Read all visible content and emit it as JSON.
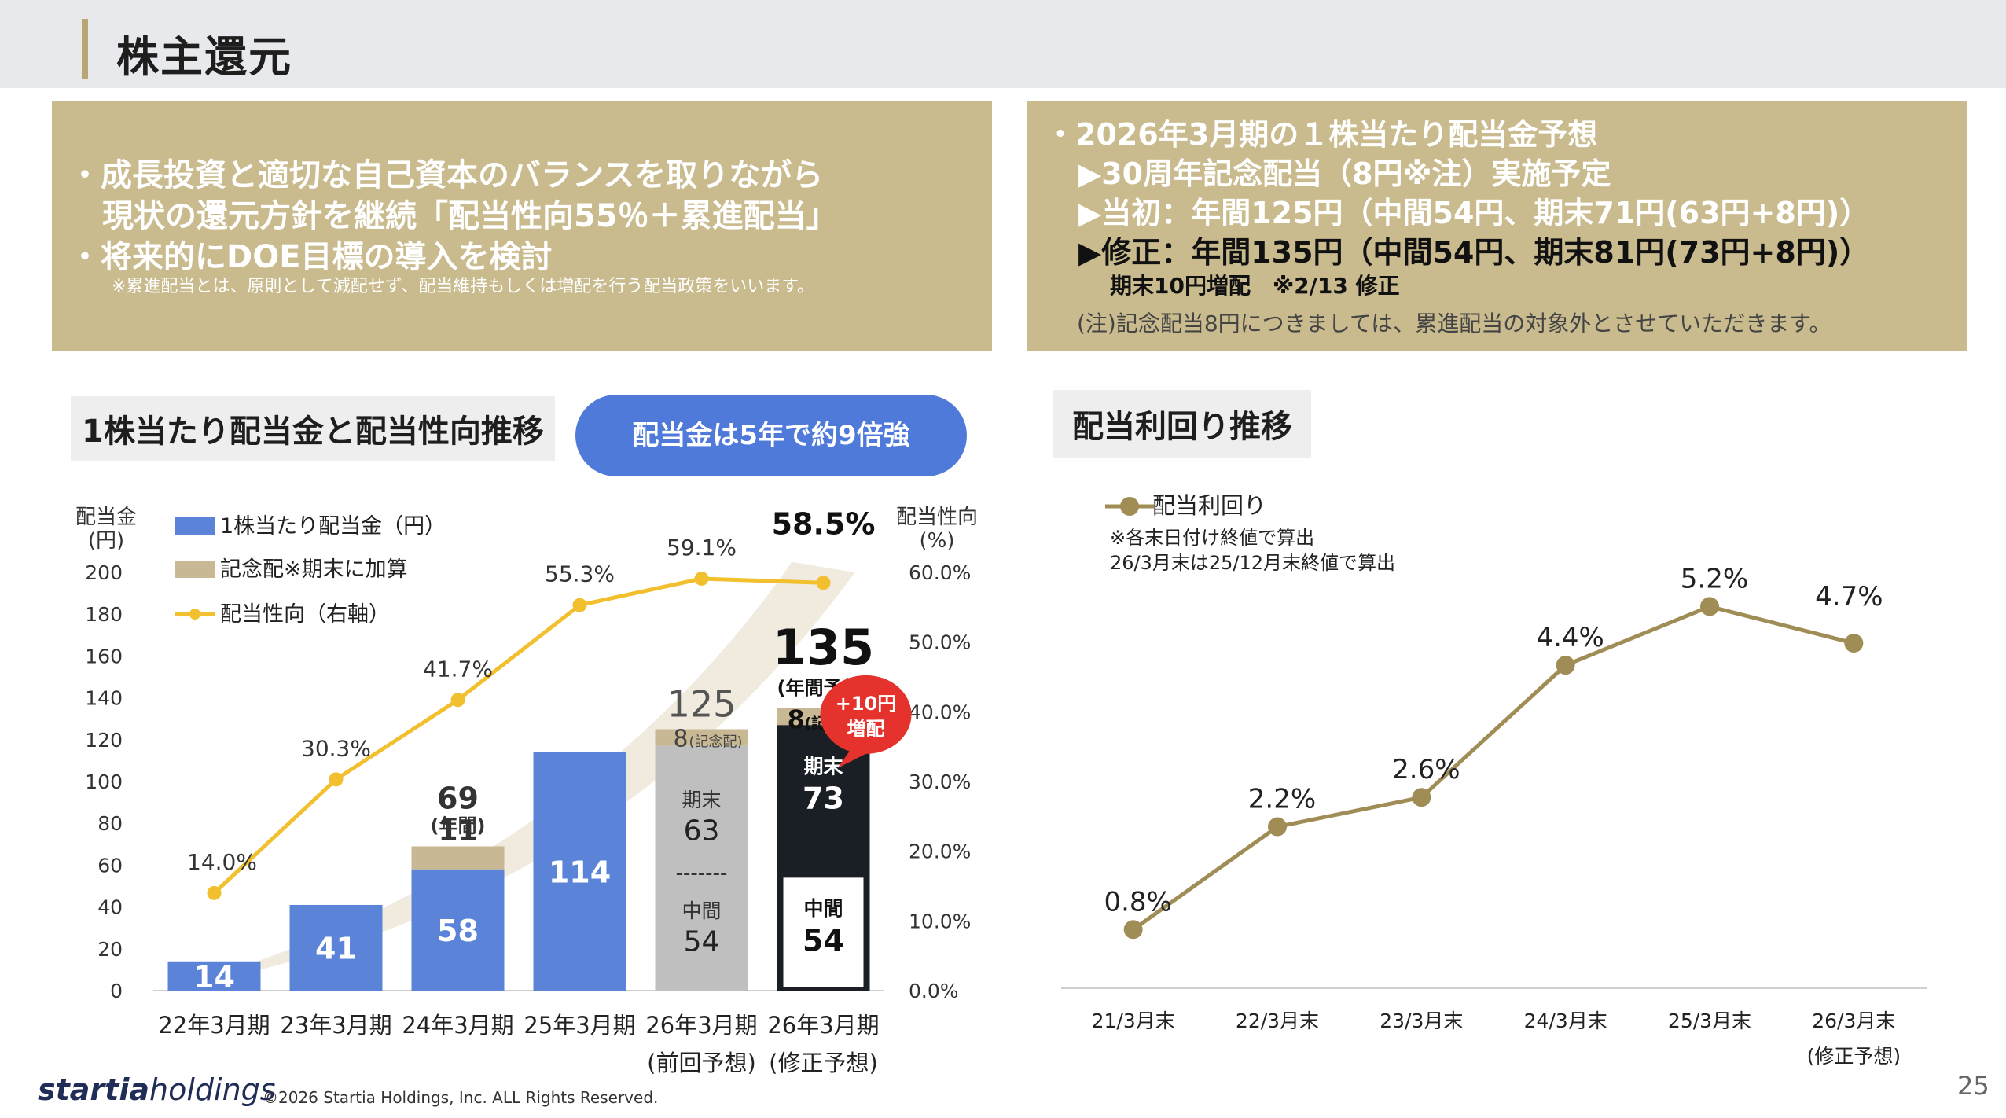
{
  "header": {
    "title": "株主還元"
  },
  "left_box": {
    "bullet1_line1": "・成長投資と適切な自己資本のバランスを取りながら",
    "bullet1_line2": "現状の還元方針を継続「配当性向55％＋累進配当」",
    "bullet2": "・将来的にDOE目標の導入を検討",
    "note": "※累進配当とは、原則として減配せず、配当維持もしくは増配を行う配当政策をいいます。"
  },
  "right_box": {
    "line1": "・2026年3月期の１株当たり配当金予想",
    "line2": "▶30周年記念配当（8円※注）実施予定",
    "line3": "▶当初：年間125円（中間54円、期末71円(63円+8円)）",
    "line4": "▶修正：年間135円（中間54円、期末81円(73円+8円)）",
    "line5": "期末10円増配　※2/13 修正",
    "note": "(注)記念配当8円につきましては、累進配当の対象外とさせていただきます。"
  },
  "left_section": {
    "title": "1株当たり配当金と配当性向推移",
    "callout": "配当金は5年で約9倍強"
  },
  "right_section": {
    "title": "配当利回り推移"
  },
  "chart_data": [
    {
      "type": "bar",
      "title": "1株当たり配当金と配当性向推移",
      "categories": [
        "22年3月期",
        "23年3月期",
        "24年3月期",
        "25年3月期",
        "26年3月期",
        "26年3月期"
      ],
      "category_subs": [
        "",
        "",
        "",
        "",
        "(前回予想)",
        "(修正予想)"
      ],
      "y_axis_title_1": "配当金",
      "y_axis_title_2": "(円)",
      "y2_axis_title_1": "配当性向",
      "y2_axis_title_2": "(%)",
      "ylim": [
        0,
        200
      ],
      "yticks": [
        "0",
        "20",
        "40",
        "60",
        "80",
        "100",
        "120",
        "140",
        "160",
        "180",
        "200"
      ],
      "y2lim": [
        0,
        60
      ],
      "y2ticks": [
        "0.0%",
        "10.0%",
        "20.0%",
        "30.0%",
        "40.0%",
        "50.0%",
        "60.0%"
      ],
      "legend": [
        "1株当たり配当金（円）",
        "記念配※期末に加算",
        "配当性向（右軸）"
      ],
      "series": [
        {
          "name": "1株当たり配当金（円）",
          "values": [
            14,
            41,
            58,
            114,
            117,
            127
          ],
          "color": "#5b84d9"
        },
        {
          "name": "記念配※期末に加算",
          "values": [
            0,
            0,
            11,
            0,
            8,
            8
          ],
          "color": "#c8b894"
        },
        {
          "name": "配当性向（右軸）",
          "values": [
            14.0,
            30.3,
            41.7,
            55.3,
            59.1,
            58.5
          ],
          "axis": "right",
          "color": "#f2c02f"
        }
      ],
      "bar_labels": [
        "14",
        "41",
        "58",
        "114"
      ],
      "payout_labels": [
        "14.0%",
        "30.3%",
        "41.7%",
        "55.3%",
        "59.1%",
        "58.5%"
      ],
      "fy24": {
        "total": "69",
        "sub": "(年間)",
        "commemorative": "11"
      },
      "prev_forecast": {
        "total": "125",
        "comm": "8",
        "comm_note": "(記念配)",
        "end_label": "期末",
        "end_value": "63",
        "divider": "-------",
        "interim_label": "中間",
        "interim_value": "54"
      },
      "rev_forecast": {
        "total": "135",
        "total_note": "(年間予想)",
        "comm": "8",
        "comm_note": "(記念配)",
        "end_label": "期末",
        "end_value": "73",
        "interim_label": "中間",
        "interim_value": "54",
        "badge_line1": "+10円",
        "badge_line2": "増配"
      },
      "colors": {
        "bar": "#5b84d9",
        "commemorative": "#c8b894",
        "forecast_prev": "#bfbfbf",
        "forecast_rev": "#1a1f26",
        "line": "#f2c02f",
        "badge": "#e5322d"
      }
    },
    {
      "type": "line",
      "title": "配当利回り推移",
      "legend": "配当利回り",
      "notes": [
        "※各末日付け終値で算出",
        "26/3月末は25/12月末終値で算出"
      ],
      "categories": [
        "21/3月末",
        "22/3月末",
        "23/3月末",
        "24/3月末",
        "25/3月末",
        "26/3月末"
      ],
      "category_subs": [
        "",
        "",
        "",
        "",
        "",
        "(修正予想)"
      ],
      "values": [
        0.8,
        2.2,
        2.6,
        4.4,
        5.2,
        4.7
      ],
      "labels": [
        "0.8%",
        "2.2%",
        "2.6%",
        "4.4%",
        "5.2%",
        "4.7%"
      ],
      "ylim": [
        0,
        6.5
      ],
      "color": "#a08c55"
    }
  ],
  "footer": {
    "logo_bold": "startia",
    "logo_light": "holdings",
    "copyright": "©2026 Startia Holdings, Inc. ALL Rights Reserved.",
    "page_number": "25"
  }
}
